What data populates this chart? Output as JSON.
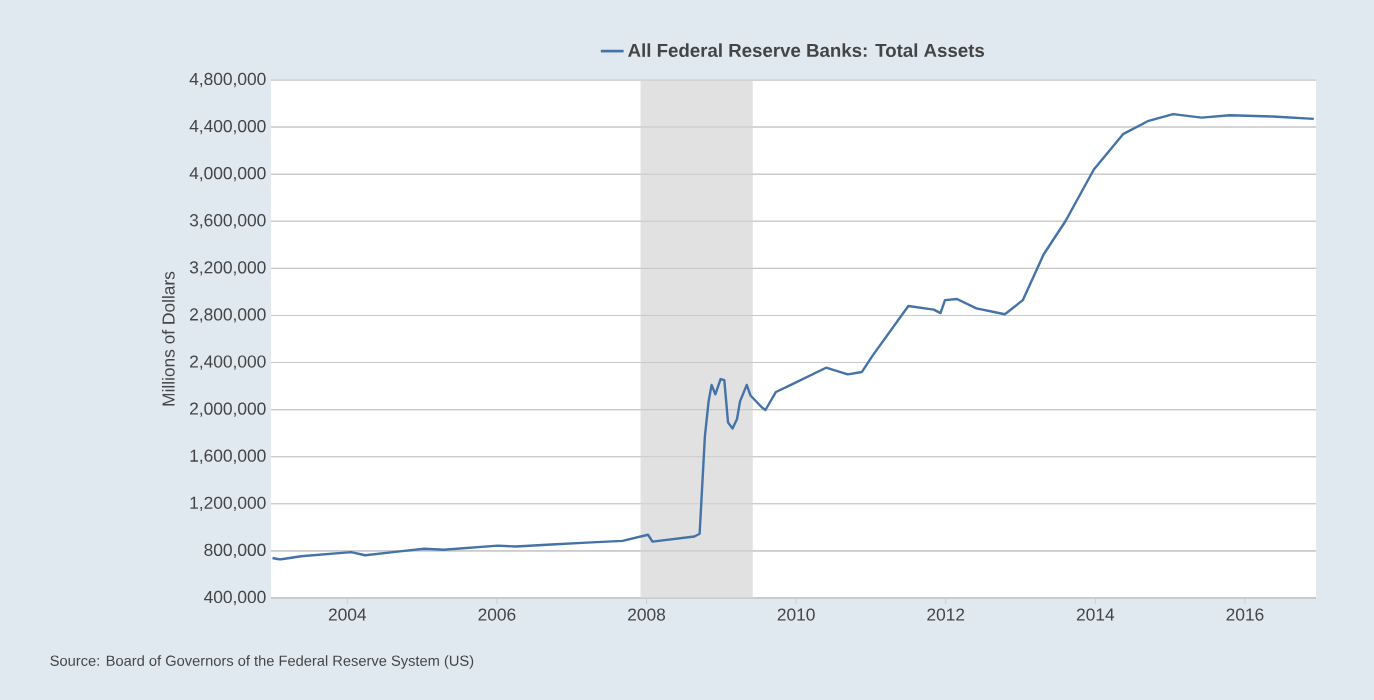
{
  "chart_data": {
    "type": "line",
    "ylabel": "Millions of Dollars",
    "annotations": [
      "Source: Board of Governors of the Federal Reserve System (US)"
    ],
    "xlim": [
      2002.98,
      2016.95
    ],
    "xticks": [
      2004,
      2006,
      2008,
      2010,
      2012,
      2014,
      2016
    ],
    "ylim": [
      400000,
      4800000
    ],
    "yticks": [
      {
        "value": 400000,
        "label": "400,000"
      },
      {
        "value": 800000,
        "label": "800,000"
      },
      {
        "value": 1200000,
        "label": "1,200,000"
      },
      {
        "value": 1600000,
        "label": "1,600,000"
      },
      {
        "value": 2000000,
        "label": "2,000,000"
      },
      {
        "value": 2400000,
        "label": "2,400,000"
      },
      {
        "value": 2800000,
        "label": "2,800,000"
      },
      {
        "value": 3200000,
        "label": "3,200,000"
      },
      {
        "value": 3600000,
        "label": "3,600,000"
      },
      {
        "value": 4000000,
        "label": "4,000,000"
      },
      {
        "value": 4400000,
        "label": "4,400,000"
      },
      {
        "value": 4800000,
        "label": "4,800,000"
      }
    ],
    "grid": "y",
    "legend": "top",
    "line_style": "solid",
    "bands": [
      {
        "axis": "x",
        "from": 2007.92,
        "to": 2009.42,
        "color": "#e1e1e1"
      }
    ],
    "series": [
      {
        "name": "All Federal Reserve Banks: Total Assets",
        "color": "#4572a7",
        "x": [
          2003.0,
          2003.1,
          2003.38,
          2004.05,
          2004.24,
          2004.67,
          2005.03,
          2005.29,
          2006.01,
          2006.25,
          2006.73,
          2007.2,
          2007.68,
          2008.02,
          2008.08,
          2008.64,
          2008.71,
          2008.78,
          2008.83,
          2008.87,
          2008.92,
          2008.99,
          2009.04,
          2009.09,
          2009.15,
          2009.21,
          2009.25,
          2009.34,
          2009.39,
          2009.54,
          2009.59,
          2009.73,
          2009.93,
          2010.4,
          2010.69,
          2010.88,
          2011.02,
          2011.5,
          2011.84,
          2011.93,
          2011.99,
          2012.15,
          2012.41,
          2012.79,
          2013.03,
          2013.31,
          2013.6,
          2013.98,
          2014.37,
          2014.7,
          2015.04,
          2015.42,
          2015.8,
          2016.37,
          2016.92
        ],
        "values": [
          740000,
          727000,
          755000,
          790000,
          763000,
          794000,
          818000,
          810000,
          845000,
          837000,
          855000,
          870000,
          885000,
          937000,
          879000,
          922000,
          946000,
          1770000,
          2070000,
          2210000,
          2130000,
          2260000,
          2250000,
          1890000,
          1840000,
          1920000,
          2070000,
          2210000,
          2120000,
          2020000,
          1997000,
          2150000,
          2210000,
          2356000,
          2300000,
          2320000,
          2457000,
          2880000,
          2850000,
          2820000,
          2930000,
          2940000,
          2860000,
          2810000,
          2930000,
          3320000,
          3600000,
          4040000,
          4340000,
          4450000,
          4510000,
          4480000,
          4500000,
          4490000,
          4470000
        ]
      }
    ]
  }
}
